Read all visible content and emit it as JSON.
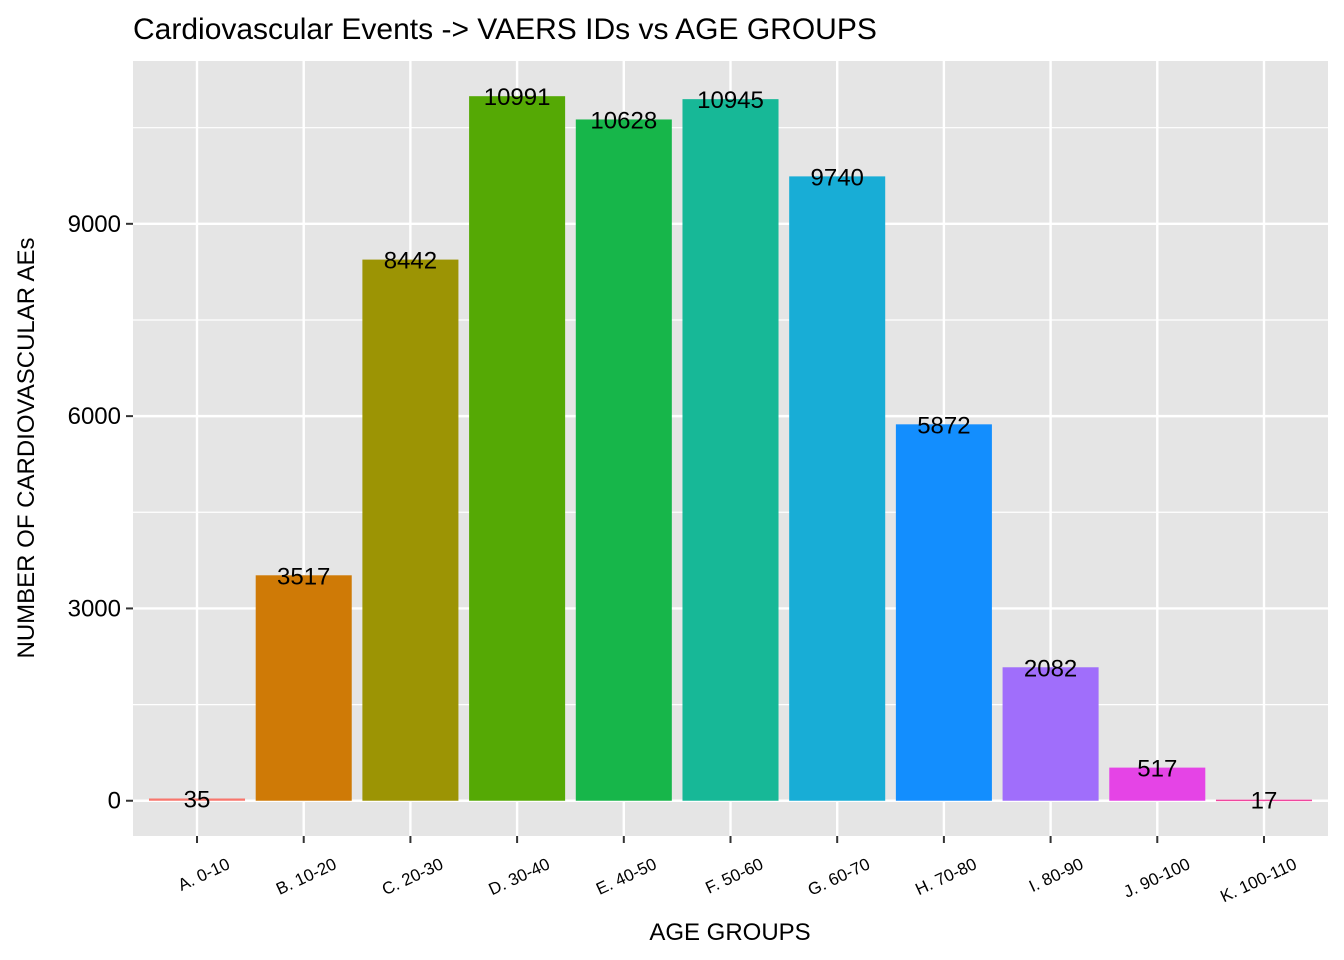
{
  "chart_data": {
    "type": "bar",
    "title": "Cardiovascular Events -> VAERS IDs vs AGE GROUPS",
    "xlabel": "AGE GROUPS",
    "ylabel": "NUMBER OF CARDIOVASCULAR AEs",
    "categories": [
      "A. 0-10",
      "B. 10-20",
      "C. 20-30",
      "D. 30-40",
      "E. 40-50",
      "F. 50-60",
      "G. 60-70",
      "H. 70-80",
      "I. 80-90",
      "J. 90-100",
      "K. 100-110"
    ],
    "values": [
      35,
      3517,
      8442,
      10991,
      10628,
      10945,
      9740,
      5872,
      2082,
      517,
      17
    ],
    "data_labels": [
      "35",
      "3517",
      "8442",
      "10991",
      "10628",
      "10945",
      "9740",
      "5872",
      "2082",
      "517",
      "17"
    ],
    "colors": [
      "#F8766D",
      "#D39200",
      "#93AA00",
      "#00BA38",
      "#00C19F",
      "#00B9E3",
      "#00B2D8",
      "#619CFF",
      "#A07BFF",
      "#DB72FB",
      "#FF61C3"
    ],
    "bar_colors": [
      "#F8766D",
      "#CF7A06",
      "#9C9404",
      "#55A905",
      "#17B64A",
      "#17B897",
      "#18ADD6",
      "#138EFE",
      "#A06EFB",
      "#E544E6",
      "#F0469E"
    ],
    "yticks": [
      0,
      3000,
      6000,
      9000
    ],
    "ytick_labels": [
      "0",
      "3000",
      "6000",
      "9000"
    ],
    "ylim": [
      -550,
      11540
    ],
    "grid": true,
    "panel_background": "#E5E5E5",
    "grid_color": "#FFFFFF",
    "legend": "none"
  }
}
